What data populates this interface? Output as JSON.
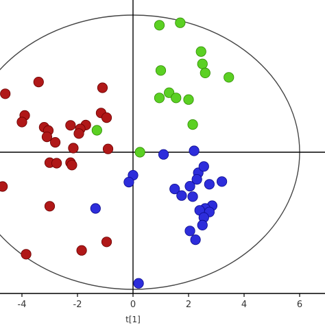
{
  "chart_data": {
    "type": "scatter",
    "title": "",
    "xlabel": "t[1]",
    "ylabel": "",
    "xlim": [
      -4.75,
      6.9
    ],
    "ylim": [
      -5.4,
      5.9
    ],
    "x_ticks": [
      -4,
      -2,
      0,
      2,
      4,
      6
    ],
    "x_tick_labels": [
      "-4",
      "-2",
      "0",
      "2",
      "4",
      "6"
    ],
    "grid": false,
    "ellipse": {
      "cx": 0.0,
      "cy": 0.0,
      "rx": 6.0,
      "ry": 5.0
    },
    "series": [
      {
        "color": "#b01818",
        "stroke": "#6a0000",
        "points": [
          [
            -3.4,
            2.56
          ],
          [
            -4.6,
            2.13
          ],
          [
            -3.9,
            1.34
          ],
          [
            -4.0,
            1.1
          ],
          [
            -3.2,
            0.91
          ],
          [
            -3.05,
            0.79
          ],
          [
            -3.1,
            0.56
          ],
          [
            -2.8,
            0.36
          ],
          [
            -2.25,
            0.98
          ],
          [
            -1.7,
            0.99
          ],
          [
            -1.9,
            0.85
          ],
          [
            -1.95,
            0.68
          ],
          [
            -1.1,
            2.35
          ],
          [
            -1.15,
            1.43
          ],
          [
            -0.95,
            1.26
          ],
          [
            -0.9,
            0.12
          ],
          [
            -2.15,
            0.15
          ],
          [
            -2.25,
            -0.38
          ],
          [
            -3.0,
            -0.38
          ],
          [
            -2.75,
            -0.4
          ],
          [
            -2.2,
            -0.47
          ],
          [
            -4.7,
            -1.25
          ],
          [
            -3.0,
            -1.97
          ],
          [
            -1.85,
            -3.58
          ],
          [
            -0.95,
            -3.27
          ],
          [
            -3.85,
            -3.72
          ]
        ]
      },
      {
        "color": "#5bd023",
        "stroke": "#2e8a00",
        "points": [
          [
            0.95,
            4.63
          ],
          [
            1.7,
            4.72
          ],
          [
            2.45,
            3.67
          ],
          [
            2.5,
            3.22
          ],
          [
            2.6,
            2.89
          ],
          [
            1.0,
            2.98
          ],
          [
            1.3,
            2.17
          ],
          [
            1.55,
            1.98
          ],
          [
            0.95,
            1.98
          ],
          [
            2.0,
            1.92
          ],
          [
            3.45,
            2.73
          ],
          [
            2.15,
            1.01
          ],
          [
            -1.3,
            0.8
          ],
          [
            0.25,
            0.0
          ]
        ]
      },
      {
        "color": "#2d2ddb",
        "stroke": "#0a0a8a",
        "points": [
          [
            2.2,
            0.05
          ],
          [
            1.1,
            -0.08
          ],
          [
            2.35,
            -0.75
          ],
          [
            2.55,
            -0.52
          ],
          [
            2.3,
            -0.99
          ],
          [
            3.2,
            -1.07
          ],
          [
            2.75,
            -1.17
          ],
          [
            2.05,
            -1.24
          ],
          [
            0.0,
            -0.84
          ],
          [
            -0.15,
            -1.09
          ],
          [
            1.5,
            -1.34
          ],
          [
            1.75,
            -1.58
          ],
          [
            2.15,
            -1.62
          ],
          [
            2.85,
            -1.95
          ],
          [
            2.6,
            -2.05
          ],
          [
            2.4,
            -2.12
          ],
          [
            2.75,
            -2.18
          ],
          [
            2.55,
            -2.38
          ],
          [
            2.5,
            -2.66
          ],
          [
            2.05,
            -2.87
          ],
          [
            2.25,
            -3.19
          ],
          [
            -1.35,
            -2.05
          ],
          [
            0.2,
            -4.78
          ]
        ]
      }
    ]
  }
}
